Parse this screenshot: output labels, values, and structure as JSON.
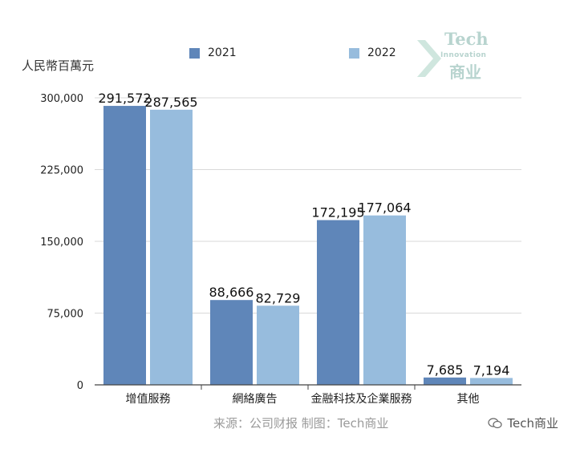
{
  "legend": {
    "items": [
      {
        "label": "2021",
        "color": "#5f86b9"
      },
      {
        "label": "2022",
        "color": "#97bcdd"
      }
    ]
  },
  "unit_label": "人民幣百萬元",
  "source": "来源：公司财报 制图：Tech商业",
  "watermark": {
    "line1": "Tech",
    "line2": "Innovation",
    "line3": "商业"
  },
  "wechat": {
    "icon": "wechat-icon",
    "label": "Tech商业"
  },
  "chart_data": {
    "type": "bar",
    "categories": [
      "增值服務",
      "網絡廣告",
      "金融科技及企業服務",
      "其他"
    ],
    "series": [
      {
        "name": "2021",
        "color": "#5f86b9",
        "values": [
          291572,
          88666,
          172195,
          7685
        ],
        "labels": [
          "291,572",
          "88,666",
          "172,195",
          "7,685"
        ]
      },
      {
        "name": "2022",
        "color": "#97bcdd",
        "values": [
          287565,
          82729,
          177064,
          7194
        ],
        "labels": [
          "287,565",
          "82,729",
          "177,064",
          "7,194"
        ]
      }
    ],
    "yticks": [
      0,
      75000,
      150000,
      225000,
      300000
    ],
    "ytick_labels": [
      "0",
      "75,000",
      "150,000",
      "225,000",
      "300,000"
    ],
    "ylim": [
      0,
      300000
    ],
    "ylabel": "人民幣百萬元",
    "grid": true,
    "legend_position": "top"
  }
}
